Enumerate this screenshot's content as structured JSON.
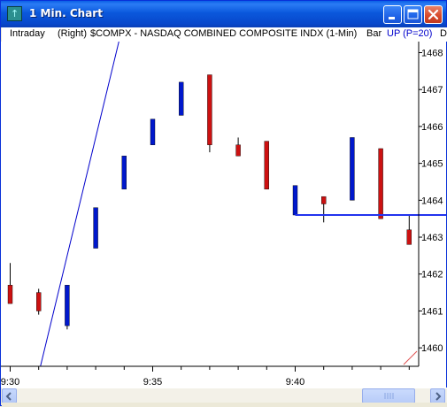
{
  "window": {
    "title": "1 Min. Chart",
    "icon": "chart-app-icon",
    "colors": {
      "titlebar": "#0A58DC",
      "close": "#D84B2D"
    }
  },
  "info": {
    "mode": "Intraday",
    "axis": "(Right)",
    "symbol": "$COMPX - NASDAQ COMBINED COMPOSITE INDX (1-Min)",
    "style": "Bar",
    "indicator": "UP (P=20)",
    "truncated": "D"
  },
  "chart_data": {
    "type": "candlestick",
    "y_axis": {
      "position": "right",
      "range": [
        1459.5,
        1468.3
      ],
      "ticks": [
        1460,
        1461,
        1462,
        1463,
        1464,
        1465,
        1466,
        1467,
        1468
      ]
    },
    "x_axis": {
      "tick_labels": [
        {
          "label": "9:30",
          "bar_index": 0
        },
        {
          "label": "9:35",
          "bar_index": 5
        },
        {
          "label": "9:40",
          "bar_index": 10
        }
      ]
    },
    "colors": {
      "up": "#0018CC",
      "down": "#CC1111",
      "line": "#0000CC",
      "hline": "#2233EE"
    },
    "bars": [
      {
        "time": "9:30",
        "open": 1461.7,
        "high": 1462.3,
        "low": 1461.2,
        "close": 1461.2
      },
      {
        "time": "9:31",
        "open": 1461.5,
        "high": 1461.6,
        "low": 1460.9,
        "close": 1461.0
      },
      {
        "time": "9:32",
        "open": 1460.6,
        "high": 1461.7,
        "low": 1460.5,
        "close": 1461.7
      },
      {
        "time": "9:33",
        "open": 1462.7,
        "high": 1463.8,
        "low": 1462.7,
        "close": 1463.8
      },
      {
        "time": "9:34",
        "open": 1464.3,
        "high": 1465.2,
        "low": 1464.3,
        "close": 1465.2
      },
      {
        "time": "9:35",
        "open": 1465.5,
        "high": 1466.2,
        "low": 1465.5,
        "close": 1466.2
      },
      {
        "time": "9:36",
        "open": 1466.3,
        "high": 1467.2,
        "low": 1466.3,
        "close": 1467.2
      },
      {
        "time": "9:37",
        "open": 1467.4,
        "high": 1467.4,
        "low": 1465.3,
        "close": 1465.5
      },
      {
        "time": "9:38",
        "open": 1465.5,
        "high": 1465.7,
        "low": 1465.2,
        "close": 1465.2
      },
      {
        "time": "9:39",
        "open": 1465.6,
        "high": 1465.6,
        "low": 1464.3,
        "close": 1464.3
      },
      {
        "time": "9:40",
        "open": 1463.6,
        "high": 1464.4,
        "low": 1463.6,
        "close": 1464.4
      },
      {
        "time": "9:41",
        "open": 1464.1,
        "high": 1464.1,
        "low": 1463.4,
        "close": 1463.9
      },
      {
        "time": "9:42",
        "open": 1464.0,
        "high": 1465.7,
        "low": 1464.0,
        "close": 1465.7
      },
      {
        "time": "9:43",
        "open": 1465.4,
        "high": 1465.4,
        "low": 1463.5,
        "close": 1463.5
      },
      {
        "time": "9:44",
        "open": 1463.2,
        "high": 1463.6,
        "low": 1462.8,
        "close": 1462.8
      }
    ],
    "trend_line": {
      "from": {
        "bar_index": 1,
        "price": 1459.5
      },
      "to": {
        "bar_index": 4,
        "price": 1468.3
      }
    },
    "horizontal_line": {
      "from_bar_index": 10,
      "price": 1463.6
    }
  }
}
